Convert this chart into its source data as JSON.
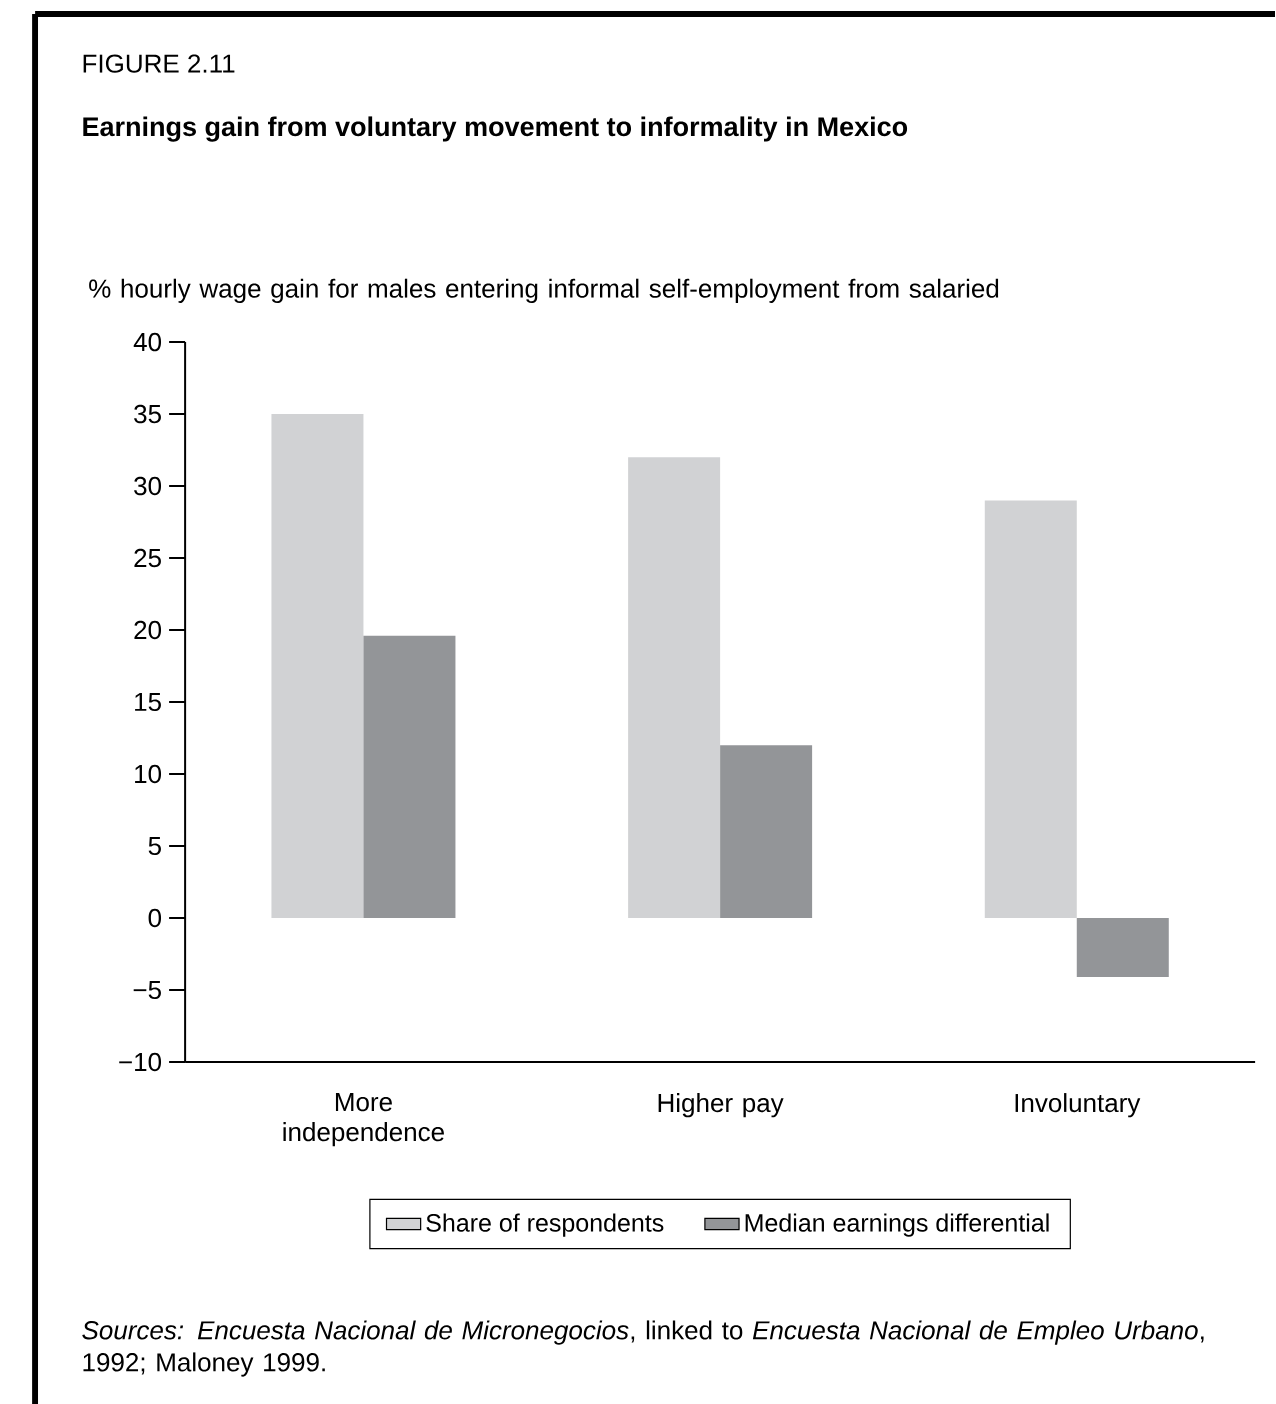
{
  "chart_data": {
    "type": "bar",
    "title": "FIGURE 2.11",
    "subtitle": "Earnings gain from voluntary movement to informality in Mexico",
    "ylabel": "% hourly wage gain for males entering informal self-employment from salaried",
    "categories": [
      "More independence",
      "Higher pay",
      "Involuntary"
    ],
    "series": [
      {
        "name": "Share of respondents",
        "color": "#d1d2d4",
        "values": [
          35,
          32,
          29
        ]
      },
      {
        "name": "Median earnings differential",
        "color": "#939598",
        "values": [
          19.6,
          12,
          -4.1
        ]
      }
    ],
    "ylim": [
      -10,
      40
    ],
    "yticks": [
      {
        "value": -10,
        "label": "−10"
      },
      {
        "value": -5,
        "label": "−5"
      },
      0,
      5,
      10,
      15,
      20,
      25,
      30,
      35,
      40
    ],
    "legend": "bottom",
    "annotations": [
      "*Sources: Encuesta Nacional de Micronegocios*, linked to *Encuesta Nacional de Empleo Urbano*, 1992; Maloney 1999."
    ]
  }
}
